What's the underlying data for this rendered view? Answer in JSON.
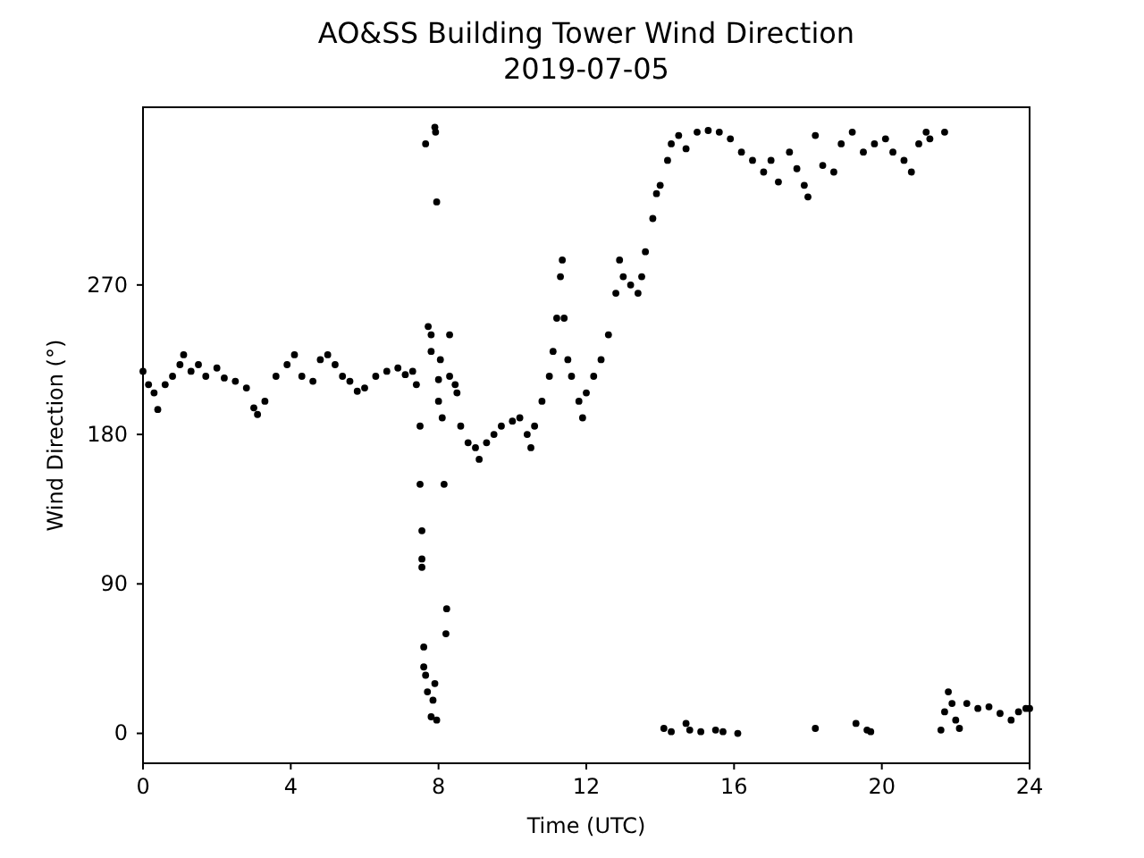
{
  "chart_data": {
    "type": "scatter",
    "title": "AO&SS Building Tower Wind Direction",
    "subtitle": "2019-07-05",
    "xlabel": "Time (UTC)",
    "ylabel": "Wind Direction (°)",
    "xlim": [
      0,
      24
    ],
    "xticks": [
      0,
      4,
      8,
      12,
      16,
      20,
      24
    ],
    "ylim": [
      -18,
      377
    ],
    "yticks": [
      0,
      90,
      180,
      270
    ],
    "grid": false,
    "marker": "circle",
    "series": [
      {
        "color": "#000000",
        "x": [
          0,
          0.15,
          0.3,
          0.4,
          0.6,
          0.8,
          1.0,
          1.1,
          1.3,
          1.5,
          1.7,
          2.0,
          2.2,
          2.5,
          2.8,
          3.0,
          3.1,
          3.3,
          3.6,
          3.9,
          4.1,
          4.3,
          4.6,
          4.8,
          5.0,
          5.2,
          5.4,
          5.6,
          5.8,
          6.0,
          6.3,
          6.6,
          6.9,
          7.1,
          7.3,
          7.4,
          7.5,
          7.5,
          7.55,
          7.55,
          7.55,
          7.6,
          7.6,
          7.65,
          7.7,
          7.8,
          7.65,
          7.72,
          7.8,
          7.8,
          7.9,
          7.92,
          7.95,
          7.85,
          7.9,
          7.95,
          8.0,
          8.0,
          8.05,
          8.1,
          8.2,
          8.22,
          8.15,
          8.3,
          8.3,
          8.45,
          8.5,
          8.6,
          8.8,
          9.0,
          9.1,
          9.3,
          9.5,
          9.7,
          10.0,
          10.2,
          10.4,
          10.5,
          10.6,
          10.8,
          11.0,
          11.1,
          11.2,
          11.3,
          11.35,
          11.4,
          11.5,
          11.6,
          11.8,
          11.9,
          12.0,
          12.2,
          12.4,
          12.6,
          12.8,
          12.9,
          13.0,
          13.2,
          13.4,
          13.5,
          13.6,
          13.8,
          13.9,
          14.0,
          14.2,
          14.3,
          14.5,
          14.7,
          15.0,
          15.3,
          15.6,
          15.9,
          16.2,
          16.5,
          16.8,
          17.0,
          17.2,
          17.5,
          17.7,
          17.9,
          18.0,
          18.2,
          18.4,
          18.7,
          18.9,
          19.2,
          19.5,
          19.8,
          20.1,
          20.3,
          20.6,
          20.8,
          21.0,
          21.2,
          21.3,
          21.7,
          14.1,
          14.3,
          14.7,
          14.8,
          15.1,
          15.5,
          15.7,
          16.1,
          18.2,
          19.3,
          19.6,
          19.7,
          21.6,
          21.7,
          21.8,
          21.9,
          22.0,
          22.1,
          22.3,
          22.6,
          22.9,
          23.2,
          23.5,
          23.7,
          23.9,
          24.0
        ],
        "values": [
          218,
          210,
          205,
          195,
          210,
          215,
          222,
          228,
          218,
          222,
          215,
          220,
          214,
          212,
          208,
          196,
          192,
          200,
          215,
          222,
          228,
          215,
          212,
          225,
          228,
          222,
          215,
          212,
          206,
          208,
          215,
          218,
          220,
          216,
          218,
          210,
          185,
          150,
          122,
          105,
          100,
          52,
          40,
          35,
          25,
          10,
          355,
          245,
          230,
          240,
          365,
          362,
          320,
          20,
          30,
          8,
          200,
          213,
          225,
          190,
          60,
          75,
          150,
          240,
          215,
          210,
          205,
          185,
          175,
          172,
          165,
          175,
          180,
          185,
          188,
          190,
          180,
          172,
          185,
          200,
          215,
          230,
          250,
          275,
          285,
          250,
          225,
          215,
          200,
          190,
          205,
          215,
          225,
          240,
          265,
          285,
          275,
          270,
          265,
          275,
          290,
          310,
          325,
          330,
          345,
          355,
          360,
          352,
          362,
          363,
          362,
          358,
          350,
          345,
          338,
          345,
          332,
          350,
          340,
          330,
          323,
          360,
          342,
          338,
          355,
          362,
          350,
          355,
          358,
          350,
          345,
          338,
          355,
          362,
          358,
          362,
          3,
          1,
          6,
          2,
          1,
          2,
          1,
          0,
          3,
          6,
          2,
          1,
          2,
          13,
          25,
          18,
          8,
          3,
          18,
          15,
          16,
          12,
          8,
          13,
          15,
          15
        ]
      }
    ]
  }
}
